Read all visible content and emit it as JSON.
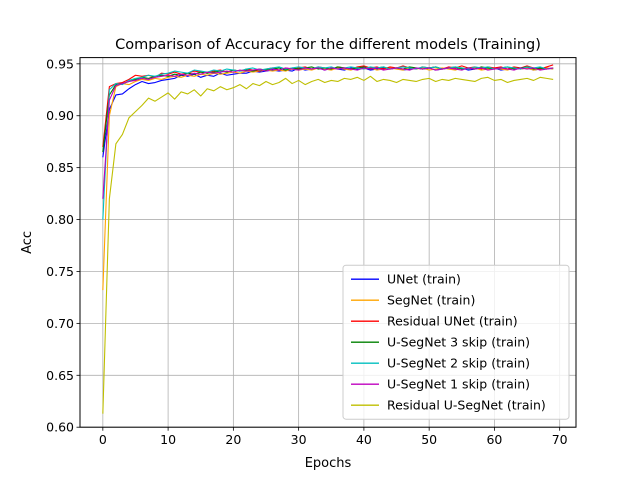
{
  "chart_data": {
    "type": "line",
    "title": "Comparison of Accuracy for the different models (Training)",
    "xlabel": "Epochs",
    "ylabel": "Acc",
    "xlim": [
      -3.5,
      72.5
    ],
    "ylim": [
      0.6,
      0.956
    ],
    "xticks": [
      0,
      10,
      20,
      30,
      40,
      50,
      60,
      70
    ],
    "xtick_labels": [
      "0",
      "10",
      "20",
      "30",
      "40",
      "50",
      "60",
      "70"
    ],
    "yticks": [
      0.6,
      0.65,
      0.7,
      0.75,
      0.8,
      0.85,
      0.9,
      0.95
    ],
    "ytick_labels": [
      "0.60",
      "0.65",
      "0.70",
      "0.75",
      "0.80",
      "0.85",
      "0.90",
      "0.95"
    ],
    "grid": true,
    "legend_position": "lower-right",
    "x": [
      0,
      1,
      2,
      3,
      4,
      5,
      6,
      7,
      8,
      9,
      10,
      11,
      12,
      13,
      14,
      15,
      16,
      17,
      18,
      19,
      20,
      21,
      22,
      23,
      24,
      25,
      26,
      27,
      28,
      29,
      30,
      31,
      32,
      33,
      34,
      35,
      36,
      37,
      38,
      39,
      40,
      41,
      42,
      43,
      44,
      45,
      46,
      47,
      48,
      49,
      50,
      51,
      52,
      53,
      54,
      55,
      56,
      57,
      58,
      59,
      60,
      61,
      62,
      63,
      64,
      65,
      66,
      67,
      68,
      69
    ],
    "series": [
      {
        "name": "UNet (train)",
        "color": "#0000ff",
        "values": [
          0.86,
          0.906,
          0.92,
          0.921,
          0.926,
          0.93,
          0.933,
          0.931,
          0.932,
          0.934,
          0.935,
          0.936,
          0.939,
          0.938,
          0.94,
          0.937,
          0.939,
          0.938,
          0.941,
          0.939,
          0.94,
          0.941,
          0.941,
          0.943,
          0.942,
          0.943,
          0.944,
          0.943,
          0.944,
          0.943,
          0.946,
          0.944,
          0.945,
          0.946,
          0.944,
          0.946,
          0.945,
          0.944,
          0.946,
          0.945,
          0.946,
          0.944,
          0.945,
          0.946,
          0.945,
          0.946,
          0.944,
          0.945,
          0.946,
          0.945,
          0.946,
          0.944,
          0.945,
          0.946,
          0.945,
          0.946,
          0.944,
          0.945,
          0.946,
          0.945,
          0.946,
          0.944,
          0.945,
          0.946,
          0.945,
          0.946,
          0.944,
          0.945,
          0.946,
          0.945
        ]
      },
      {
        "name": "SegNet (train)",
        "color": "#ffa500",
        "values": [
          0.732,
          0.9,
          0.928,
          0.931,
          0.93,
          0.933,
          0.935,
          0.934,
          0.936,
          0.935,
          0.937,
          0.938,
          0.937,
          0.939,
          0.938,
          0.94,
          0.939,
          0.941,
          0.94,
          0.941,
          0.942,
          0.941,
          0.943,
          0.942,
          0.943,
          0.944,
          0.943,
          0.944,
          0.943,
          0.945,
          0.944,
          0.945,
          0.944,
          0.946,
          0.945,
          0.944,
          0.946,
          0.945,
          0.944,
          0.946,
          0.945,
          0.946,
          0.944,
          0.945,
          0.946,
          0.945,
          0.944,
          0.946,
          0.945,
          0.946,
          0.944,
          0.945,
          0.946,
          0.945,
          0.944,
          0.946,
          0.945,
          0.946,
          0.944,
          0.945,
          0.946,
          0.945,
          0.944,
          0.946,
          0.945,
          0.946,
          0.944,
          0.945,
          0.946,
          0.945
        ]
      },
      {
        "name": "Residual UNet (train)",
        "color": "#ff0000",
        "values": [
          0.87,
          0.928,
          0.931,
          0.932,
          0.935,
          0.939,
          0.938,
          0.939,
          0.937,
          0.941,
          0.94,
          0.942,
          0.94,
          0.941,
          0.943,
          0.942,
          0.941,
          0.943,
          0.944,
          0.942,
          0.944,
          0.943,
          0.945,
          0.944,
          0.943,
          0.945,
          0.946,
          0.944,
          0.946,
          0.945,
          0.946,
          0.947,
          0.945,
          0.947,
          0.946,
          0.945,
          0.947,
          0.946,
          0.945,
          0.947,
          0.948,
          0.946,
          0.947,
          0.945,
          0.947,
          0.946,
          0.948,
          0.946,
          0.945,
          0.947,
          0.946,
          0.947,
          0.945,
          0.947,
          0.946,
          0.948,
          0.946,
          0.947,
          0.945,
          0.947,
          0.946,
          0.947,
          0.945,
          0.947,
          0.946,
          0.948,
          0.946,
          0.945,
          0.947,
          0.949
        ]
      },
      {
        "name": "U-SegNet 3 skip (train)",
        "color": "#008000",
        "values": [
          0.865,
          0.92,
          0.93,
          0.931,
          0.933,
          0.935,
          0.937,
          0.936,
          0.938,
          0.939,
          0.938,
          0.94,
          0.939,
          0.941,
          0.94,
          0.942,
          0.941,
          0.942,
          0.943,
          0.942,
          0.944,
          0.943,
          0.944,
          0.943,
          0.945,
          0.944,
          0.945,
          0.946,
          0.944,
          0.946,
          0.945,
          0.946,
          0.947,
          0.945,
          0.946,
          0.945,
          0.947,
          0.946,
          0.945,
          0.946,
          0.947,
          0.945,
          0.946,
          0.947,
          0.945,
          0.946,
          0.945,
          0.947,
          0.946,
          0.945,
          0.946,
          0.947,
          0.945,
          0.946,
          0.947,
          0.945,
          0.946,
          0.945,
          0.947,
          0.946,
          0.945,
          0.946,
          0.947,
          0.945,
          0.946,
          0.947,
          0.945,
          0.946,
          0.945,
          0.946
        ]
      },
      {
        "name": "U-SegNet 2 skip (train)",
        "color": "#00bfbf",
        "values": [
          0.8,
          0.925,
          0.931,
          0.93,
          0.934,
          0.936,
          0.937,
          0.939,
          0.938,
          0.94,
          0.941,
          0.943,
          0.942,
          0.941,
          0.944,
          0.943,
          0.942,
          0.944,
          0.943,
          0.945,
          0.944,
          0.943,
          0.945,
          0.946,
          0.944,
          0.945,
          0.946,
          0.947,
          0.945,
          0.946,
          0.947,
          0.946,
          0.945,
          0.947,
          0.946,
          0.947,
          0.945,
          0.946,
          0.947,
          0.946,
          0.945,
          0.947,
          0.946,
          0.947,
          0.945,
          0.946,
          0.947,
          0.946,
          0.945,
          0.947,
          0.946,
          0.947,
          0.945,
          0.946,
          0.947,
          0.946,
          0.945,
          0.947,
          0.946,
          0.947,
          0.945,
          0.946,
          0.947,
          0.946,
          0.945,
          0.947,
          0.946,
          0.947,
          0.945,
          0.946
        ]
      },
      {
        "name": "U-SegNet 1 skip (train)",
        "color": "#bf00bf",
        "values": [
          0.82,
          0.915,
          0.929,
          0.931,
          0.933,
          0.934,
          0.936,
          0.935,
          0.937,
          0.938,
          0.939,
          0.938,
          0.94,
          0.939,
          0.941,
          0.94,
          0.942,
          0.941,
          0.942,
          0.943,
          0.942,
          0.944,
          0.943,
          0.944,
          0.945,
          0.943,
          0.945,
          0.944,
          0.946,
          0.945,
          0.944,
          0.946,
          0.945,
          0.946,
          0.944,
          0.946,
          0.945,
          0.946,
          0.945,
          0.944,
          0.946,
          0.945,
          0.946,
          0.944,
          0.945,
          0.946,
          0.945,
          0.944,
          0.946,
          0.945,
          0.946,
          0.944,
          0.945,
          0.946,
          0.945,
          0.944,
          0.946,
          0.945,
          0.946,
          0.944,
          0.945,
          0.946,
          0.945,
          0.944,
          0.946,
          0.945,
          0.946,
          0.944,
          0.945,
          0.946
        ]
      },
      {
        "name": "Residual U-SegNet (train)",
        "color": "#bfbf00",
        "values": [
          0.613,
          0.82,
          0.873,
          0.882,
          0.898,
          0.904,
          0.91,
          0.917,
          0.914,
          0.918,
          0.922,
          0.916,
          0.923,
          0.921,
          0.925,
          0.919,
          0.926,
          0.924,
          0.928,
          0.925,
          0.927,
          0.93,
          0.926,
          0.931,
          0.929,
          0.933,
          0.93,
          0.932,
          0.936,
          0.931,
          0.934,
          0.93,
          0.933,
          0.935,
          0.932,
          0.934,
          0.933,
          0.936,
          0.935,
          0.937,
          0.934,
          0.938,
          0.933,
          0.935,
          0.934,
          0.932,
          0.935,
          0.934,
          0.933,
          0.935,
          0.936,
          0.933,
          0.935,
          0.934,
          0.936,
          0.935,
          0.934,
          0.933,
          0.936,
          0.937,
          0.934,
          0.935,
          0.932,
          0.934,
          0.935,
          0.936,
          0.934,
          0.937,
          0.936,
          0.935
        ]
      }
    ]
  }
}
